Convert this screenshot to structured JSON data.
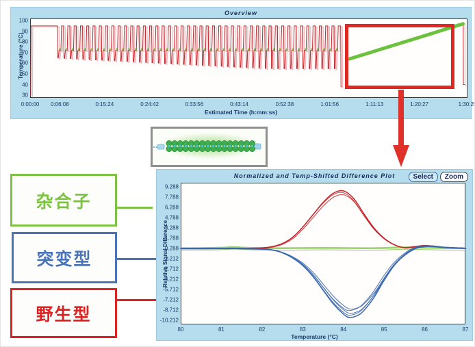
{
  "overview_panel": {
    "title": "Overview",
    "x_axis_label": "Estimated Time (h:mm:ss)",
    "y_axis_label": "Temperature (°C)",
    "x_ticks": [
      "0:00:00",
      "0:06:08",
      "0:15:24",
      "0:24:42",
      "0:33:56",
      "0:43:14",
      "0:52:38",
      "1:01:56",
      "1:11:13",
      "1:20:27",
      "1:30:25"
    ],
    "y_ticks": [
      100,
      90,
      80,
      70,
      60,
      50,
      40,
      30
    ]
  },
  "highlight": {
    "color": "#e02823",
    "arrow_color": "#e0302a"
  },
  "specimen_image": {
    "wells": 16,
    "glow_color": "#8cd264",
    "cap_color": "#9fd3e8"
  },
  "legend_boxes": [
    {
      "label": "杂合子",
      "color": "#7dc242"
    },
    {
      "label": "突变型",
      "color": "#4a74b8"
    },
    {
      "label": "野生型",
      "color": "#dd2222"
    }
  ],
  "difference_panel": {
    "title": "Normalized and Temp-Shifted Difference Plot",
    "buttons": [
      {
        "label": "Select",
        "active": true
      },
      {
        "label": "Zoom",
        "active": false
      }
    ],
    "x_axis_label": "Temperature (°C)",
    "y_axis_label": "Relative Signal Difference",
    "x_ticks": [
      80,
      81,
      82,
      83,
      84,
      85,
      86,
      87
    ],
    "y_ticks": [
      9.288,
      7.788,
      6.288,
      4.788,
      3.288,
      1.788,
      0.288,
      -1.212,
      -2.712,
      -4.212,
      -5.712,
      -7.212,
      -8.712,
      -10.212
    ]
  },
  "chart_data": [
    {
      "type": "line",
      "title": "Overview",
      "xlabel": "Estimated Time (h:mm:ss)",
      "ylabel": "Temperature (°C)",
      "x_tick_labels": [
        "0:00:00",
        "0:06:08",
        "0:15:24",
        "0:24:42",
        "0:33:56",
        "0:43:14",
        "0:52:38",
        "1:01:56",
        "1:11:13",
        "1:20:27",
        "1:30:25"
      ],
      "y_ticks": [
        100,
        90,
        80,
        70,
        60,
        50,
        40,
        30
      ],
      "ylim": [
        27,
        102
      ],
      "total_seconds": 5425,
      "profile": {
        "start_temp": 30,
        "initial_denature": {
          "temp": 95,
          "from_s": 12,
          "to_s": 330
        },
        "cycles": {
          "count": 45,
          "duration_s": 78,
          "denature_temp": 95,
          "extension_temp": 72,
          "anneal_temp_start": 65,
          "anneal_temp_end": 55
        },
        "post_cycle_cool": {
          "temp": 38,
          "at_s": 3856
        },
        "melt_ramp": {
          "from_s": 3960,
          "to_s": 5370,
          "start_temp": 64,
          "end_temp": 97
        },
        "final_drop": {
          "temp": 40,
          "at_s": 5374
        }
      },
      "series_colors": {
        "temperature": "#c5262c",
        "shadow": "#f0b9bd",
        "extension_marks": "#7dc242",
        "melt_ramp": "#6cc23e"
      }
    },
    {
      "type": "line",
      "title": "Normalized and Temp-Shifted Difference Plot",
      "xlabel": "Temperature (°C)",
      "ylabel": "Relative Signal Difference",
      "xlim": [
        80,
        87
      ],
      "ylim": [
        -11.4,
        9.9
      ],
      "baseline": 0.288,
      "legend_position": "external-left",
      "series": [
        {
          "name": "杂合子",
          "genotype": "heterozygote",
          "color": "#8fcb59",
          "strands": 3,
          "points": [
            [
              80,
              0.29
            ],
            [
              80.5,
              0.3
            ],
            [
              81,
              0.35
            ],
            [
              81.3,
              0.45
            ],
            [
              81.6,
              0.35
            ],
            [
              82,
              0.3
            ],
            [
              82.5,
              0.28
            ],
            [
              83,
              0.3
            ],
            [
              83.5,
              0.32
            ],
            [
              84,
              0.3
            ],
            [
              84.5,
              0.28
            ],
            [
              85,
              0.3
            ],
            [
              85.3,
              0.38
            ],
            [
              85.6,
              0.42
            ],
            [
              86,
              0.35
            ],
            [
              86.5,
              0.3
            ],
            [
              87,
              0.28
            ]
          ]
        },
        {
          "name": "野生型",
          "genotype": "wild-type",
          "color": "#c5262c",
          "strands": 3,
          "points": [
            [
              80,
              0.29
            ],
            [
              80.5,
              0.29
            ],
            [
              81,
              0.3
            ],
            [
              81.5,
              0.3
            ],
            [
              82,
              0.36
            ],
            [
              82.25,
              0.55
            ],
            [
              82.5,
              1.0
            ],
            [
              82.75,
              1.9
            ],
            [
              83,
              3.4
            ],
            [
              83.25,
              5.2
            ],
            [
              83.5,
              7.0
            ],
            [
              83.75,
              8.35
            ],
            [
              84,
              8.7
            ],
            [
              84.25,
              7.6
            ],
            [
              84.5,
              5.4
            ],
            [
              84.75,
              3.3
            ],
            [
              85,
              1.8
            ],
            [
              85.25,
              0.85
            ],
            [
              85.5,
              0.4
            ],
            [
              85.75,
              0.55
            ],
            [
              86,
              0.72
            ],
            [
              86.25,
              0.62
            ],
            [
              86.5,
              0.45
            ],
            [
              87,
              0.3
            ]
          ]
        },
        {
          "name": "突变型",
          "genotype": "mutant",
          "color": "#3a68ae",
          "strands": 5,
          "points": [
            [
              80,
              0.28
            ],
            [
              80.5,
              0.28
            ],
            [
              81,
              0.3
            ],
            [
              81.5,
              0.28
            ],
            [
              82,
              0.2
            ],
            [
              82.25,
              0.05
            ],
            [
              82.5,
              -0.35
            ],
            [
              82.75,
              -1.1
            ],
            [
              83,
              -2.2
            ],
            [
              83.25,
              -3.8
            ],
            [
              83.5,
              -5.8
            ],
            [
              83.75,
              -7.8
            ],
            [
              84,
              -9.3
            ],
            [
              84.15,
              -9.8
            ],
            [
              84.35,
              -9.5
            ],
            [
              84.5,
              -8.8
            ],
            [
              84.75,
              -6.9
            ],
            [
              85,
              -4.4
            ],
            [
              85.25,
              -2.2
            ],
            [
              85.5,
              -0.7
            ],
            [
              85.75,
              0.3
            ],
            [
              86,
              0.65
            ],
            [
              86.25,
              0.6
            ],
            [
              86.5,
              0.45
            ],
            [
              87,
              0.3
            ]
          ]
        }
      ]
    }
  ]
}
